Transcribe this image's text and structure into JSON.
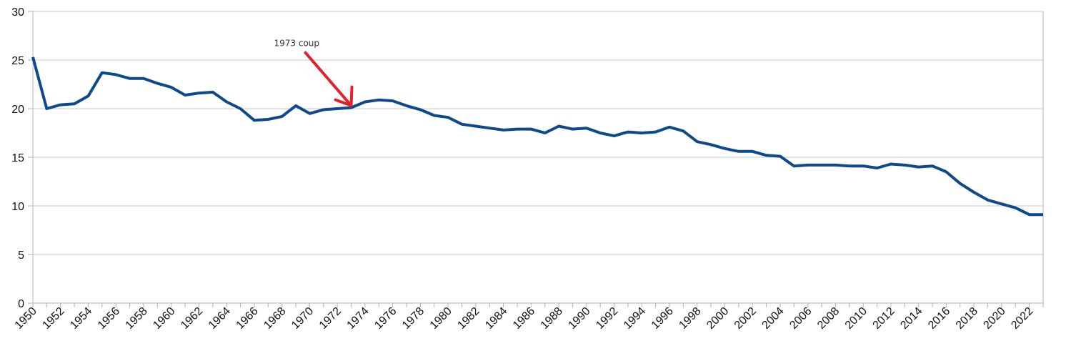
{
  "chart_data": {
    "type": "line",
    "title": "",
    "xlabel": "",
    "ylabel": "",
    "xlim": [
      1950,
      2023
    ],
    "ylim": [
      0,
      30
    ],
    "yticks": [
      0,
      5,
      10,
      15,
      20,
      25,
      30
    ],
    "xticks": [
      1950,
      1952,
      1954,
      1956,
      1958,
      1960,
      1962,
      1964,
      1966,
      1968,
      1970,
      1972,
      1974,
      1976,
      1978,
      1980,
      1982,
      1984,
      1986,
      1988,
      1990,
      1992,
      1994,
      1996,
      1998,
      2000,
      2002,
      2004,
      2006,
      2008,
      2010,
      2012,
      2014,
      2016,
      2018,
      2020,
      2022
    ],
    "grid": "horizontal",
    "legend": "none",
    "series": [
      {
        "color": "#0d4a8a",
        "x": [
          1950,
          1951,
          1952,
          1953,
          1954,
          1955,
          1956,
          1957,
          1958,
          1959,
          1960,
          1961,
          1962,
          1963,
          1964,
          1965,
          1966,
          1967,
          1968,
          1969,
          1970,
          1971,
          1972,
          1973,
          1974,
          1975,
          1976,
          1977,
          1978,
          1979,
          1980,
          1981,
          1982,
          1983,
          1984,
          1985,
          1986,
          1987,
          1988,
          1989,
          1990,
          1991,
          1992,
          1993,
          1994,
          1995,
          1996,
          1997,
          1998,
          1999,
          2000,
          2001,
          2002,
          2003,
          2004,
          2005,
          2006,
          2007,
          2008,
          2009,
          2010,
          2011,
          2012,
          2013,
          2014,
          2015,
          2016,
          2017,
          2018,
          2019,
          2020,
          2021,
          2022,
          2023
        ],
        "y": [
          25.3,
          20.0,
          20.4,
          20.5,
          21.3,
          23.7,
          23.5,
          23.1,
          23.1,
          22.6,
          22.2,
          21.4,
          21.6,
          21.7,
          20.7,
          20.0,
          18.8,
          18.9,
          19.2,
          20.3,
          19.5,
          19.9,
          20.0,
          20.1,
          20.7,
          20.9,
          20.8,
          20.3,
          19.9,
          19.3,
          19.1,
          18.4,
          18.2,
          18.0,
          17.8,
          17.9,
          17.9,
          17.5,
          18.2,
          17.9,
          18.0,
          17.5,
          17.2,
          17.6,
          17.5,
          17.6,
          18.1,
          17.7,
          16.6,
          16.3,
          15.9,
          15.6,
          15.6,
          15.2,
          15.1,
          14.1,
          14.2,
          14.2,
          14.2,
          14.1,
          14.1,
          13.9,
          14.3,
          14.2,
          14.0,
          14.1,
          13.5,
          12.3,
          11.4,
          10.6,
          10.2,
          9.8,
          9.1,
          9.1
        ]
      }
    ],
    "annotations": [
      {
        "text": "1973 coup",
        "target_x": 1973,
        "target_y": 20.1,
        "color": "#e3202b"
      }
    ]
  }
}
